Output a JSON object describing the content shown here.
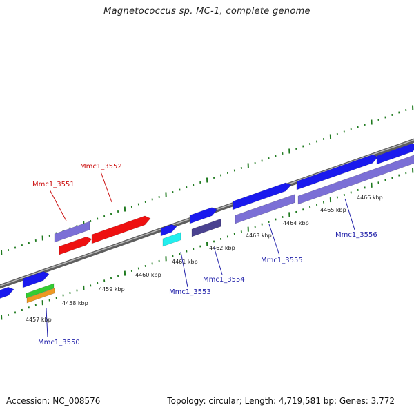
{
  "title": "Magnetococcus sp. MC-1, complete genome",
  "footer": {
    "accession": "Accession: NC_008576",
    "summary": "Topology: circular; Length: 4,719,581 bp; Genes: 3,772"
  },
  "colors": {
    "forward": "#1a1aee",
    "reverse": "#7b6fd6",
    "rna": "#ee1111",
    "cyan": "#22eeee",
    "dark": "#4a4290",
    "green": "#33cc33",
    "orange": "#ee9922",
    "backbone": "#808080",
    "tick": "#1f7a1f",
    "label_blue": "#2222aa",
    "label_red": "#cc1111"
  },
  "kbp_labels": [
    "4457 kbp",
    "4458 kbp",
    "4459 kbp",
    "4460 kbp",
    "4461 kbp",
    "4462 kbp",
    "4463 kbp",
    "4464 kbp",
    "4465 kbp",
    "4466 kbp"
  ],
  "gene_labels": [
    {
      "name": "Mmc1_3550",
      "color": "label_blue"
    },
    {
      "name": "Mmc1_3551",
      "color": "label_red"
    },
    {
      "name": "Mmc1_3552",
      "color": "label_red"
    },
    {
      "name": "Mmc1_3553",
      "color": "label_blue"
    },
    {
      "name": "Mmc1_3554",
      "color": "label_blue"
    },
    {
      "name": "Mmc1_3555",
      "color": "label_blue"
    },
    {
      "name": "Mmc1_3556",
      "color": "label_blue"
    }
  ]
}
